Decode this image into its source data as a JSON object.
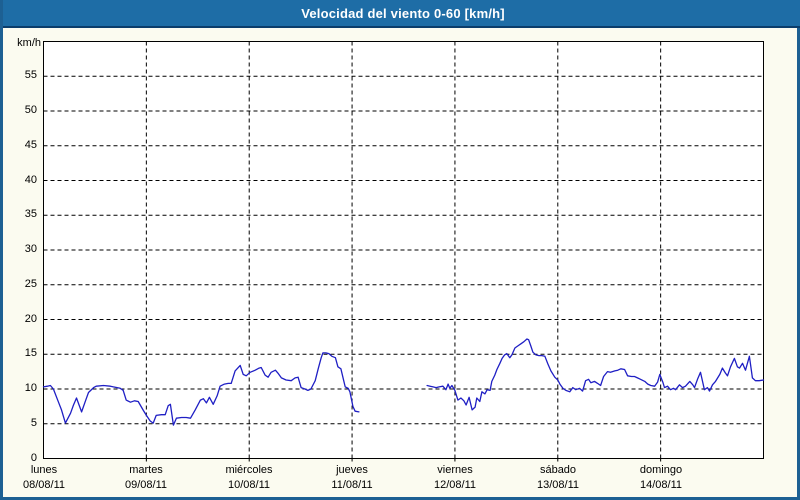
{
  "window": {
    "title": "Velocidad del viento 0-60 [km/h]"
  },
  "colors": {
    "titlebar_bg": "#1e6da6",
    "titlebar_separator": "#0b3d6b",
    "frame_border": "#1d6093",
    "frame_bg": "#fbfbf0",
    "plot_bg": "#ffffff",
    "axis": "#000000",
    "grid": "#000000",
    "line": "#1f1fc4",
    "title_text": "#ffffff",
    "label_text": "#000000"
  },
  "chart_data": {
    "type": "line",
    "title": "Velocidad del viento 0-60 [km/h]",
    "unit_label": "km/h",
    "ylim": [
      0,
      60
    ],
    "yticks": [
      0,
      5,
      10,
      15,
      20,
      25,
      30,
      35,
      40,
      45,
      50,
      55
    ],
    "grid": "dashed",
    "legend": "none",
    "x_axis": {
      "unit": "hours",
      "range_hours": [
        0,
        168
      ],
      "day_tick_every_hours": 24,
      "day_labels": [
        {
          "name": "lunes",
          "date": "08/08/11"
        },
        {
          "name": "martes",
          "date": "09/08/11"
        },
        {
          "name": "miércoles",
          "date": "10/08/11"
        },
        {
          "name": "jueves",
          "date": "11/08/11"
        },
        {
          "name": "viernes",
          "date": "12/08/11"
        },
        {
          "name": "sábado",
          "date": "13/08/11"
        },
        {
          "name": "domingo",
          "date": "14/08/11"
        }
      ]
    },
    "series": [
      {
        "name": "velocidad del viento",
        "color": "#1f1fc4",
        "segments": [
          {
            "points": [
              [
                0.0,
                10.3
              ],
              [
                0.9,
                10.4
              ],
              [
                1.6,
                10.5
              ],
              [
                2.3,
                10.0
              ],
              [
                3.5,
                8.1
              ],
              [
                4.2,
                7.0
              ],
              [
                5.1,
                5.1
              ],
              [
                6.3,
                6.5
              ],
              [
                7.0,
                7.7
              ],
              [
                7.7,
                8.7
              ],
              [
                8.9,
                6.7
              ],
              [
                9.8,
                8.3
              ],
              [
                10.5,
                9.5
              ],
              [
                11.7,
                10.2
              ],
              [
                12.3,
                10.4
              ],
              [
                14.0,
                10.5
              ],
              [
                15.6,
                10.4
              ],
              [
                16.3,
                10.3
              ],
              [
                17.9,
                10.1
              ],
              [
                18.6,
                9.8
              ],
              [
                19.3,
                8.4
              ],
              [
                20.3,
                8.1
              ],
              [
                21.2,
                8.3
              ],
              [
                22.1,
                8.2
              ],
              [
                23.3,
                6.9
              ],
              [
                24.0,
                6.2
              ],
              [
                24.9,
                5.4
              ],
              [
                25.6,
                5.1
              ],
              [
                26.3,
                6.2
              ],
              [
                27.5,
                6.3
              ],
              [
                28.4,
                6.3
              ],
              [
                29.1,
                7.6
              ],
              [
                29.6,
                7.8
              ],
              [
                30.3,
                4.8
              ],
              [
                31.0,
                5.8
              ],
              [
                32.2,
                5.9
              ],
              [
                33.3,
                5.9
              ],
              [
                34.3,
                5.8
              ],
              [
                35.4,
                7.0
              ],
              [
                36.6,
                8.4
              ],
              [
                37.3,
                8.6
              ],
              [
                38.0,
                8.0
              ],
              [
                38.7,
                8.8
              ],
              [
                39.6,
                7.8
              ],
              [
                40.5,
                9.0
              ],
              [
                41.2,
                10.4
              ],
              [
                42.2,
                10.7
              ],
              [
                43.1,
                10.8
              ],
              [
                43.8,
                10.8
              ],
              [
                44.7,
                12.6
              ],
              [
                45.9,
                13.4
              ],
              [
                46.6,
                12.1
              ],
              [
                47.3,
                11.9
              ],
              [
                48.2,
                12.4
              ],
              [
                49.4,
                12.7
              ],
              [
                50.3,
                13.0
              ],
              [
                50.8,
                13.1
              ],
              [
                51.7,
                12.0
              ],
              [
                52.4,
                11.7
              ],
              [
                53.1,
                12.4
              ],
              [
                54.1,
                12.7
              ],
              [
                54.8,
                12.2
              ],
              [
                55.5,
                11.6
              ],
              [
                56.6,
                11.3
              ],
              [
                57.8,
                11.2
              ],
              [
                58.7,
                11.6
              ],
              [
                59.4,
                11.7
              ],
              [
                60.1,
                10.2
              ],
              [
                61.0,
                10.0
              ],
              [
                61.7,
                9.8
              ],
              [
                62.4,
                10.0
              ],
              [
                63.4,
                11.2
              ],
              [
                64.1,
                12.9
              ],
              [
                64.8,
                14.5
              ],
              [
                65.2,
                15.2
              ],
              [
                65.9,
                15.2
              ],
              [
                66.6,
                15.1
              ],
              [
                67.3,
                14.7
              ],
              [
                68.1,
                14.5
              ],
              [
                68.7,
                13.2
              ],
              [
                69.4,
                12.9
              ],
              [
                70.4,
                10.3
              ],
              [
                71.1,
                10.1
              ],
              [
                71.5,
                9.6
              ],
              [
                72.2,
                7.5
              ],
              [
                72.7,
                6.8
              ],
              [
                73.6,
                6.7
              ]
            ]
          },
          {
            "points": [
              [
                89.5,
                10.5
              ],
              [
                90.2,
                10.4
              ],
              [
                90.9,
                10.3
              ],
              [
                91.6,
                10.2
              ],
              [
                92.3,
                10.3
              ],
              [
                93.2,
                10.4
              ],
              [
                93.9,
                9.9
              ],
              [
                94.4,
                10.7
              ],
              [
                94.8,
                10.1
              ],
              [
                95.3,
                10.5
              ],
              [
                96.0,
                9.8
              ],
              [
                96.7,
                8.4
              ],
              [
                97.4,
                8.7
              ],
              [
                98.1,
                8.3
              ],
              [
                98.6,
                7.7
              ],
              [
                99.3,
                8.8
              ],
              [
                100.0,
                7.0
              ],
              [
                100.7,
                7.4
              ],
              [
                101.1,
                8.7
              ],
              [
                101.8,
                8.2
              ],
              [
                102.3,
                9.6
              ],
              [
                103.0,
                9.3
              ],
              [
                103.5,
                9.9
              ],
              [
                104.2,
                9.8
              ],
              [
                104.6,
                11.1
              ],
              [
                105.3,
                12.0
              ],
              [
                105.8,
                12.8
              ],
              [
                106.5,
                13.7
              ],
              [
                107.0,
                14.4
              ],
              [
                107.6,
                14.9
              ],
              [
                108.1,
                15.1
              ],
              [
                108.8,
                14.5
              ],
              [
                109.3,
                14.9
              ],
              [
                110.0,
                15.9
              ],
              [
                110.7,
                16.2
              ],
              [
                111.4,
                16.5
              ],
              [
                112.1,
                16.8
              ],
              [
                112.8,
                17.2
              ],
              [
                113.2,
                17.1
              ],
              [
                113.7,
                16.2
              ],
              [
                114.2,
                15.3
              ],
              [
                114.9,
                14.9
              ],
              [
                115.6,
                14.8
              ],
              [
                116.3,
                14.8
              ],
              [
                117.0,
                14.7
              ],
              [
                117.7,
                13.6
              ],
              [
                118.4,
                12.6
              ],
              [
                119.3,
                11.7
              ],
              [
                120.0,
                11.3
              ],
              [
                120.5,
                10.7
              ],
              [
                121.2,
                10.1
              ],
              [
                121.9,
                9.8
              ],
              [
                122.8,
                9.6
              ],
              [
                123.5,
                10.2
              ],
              [
                124.2,
                9.9
              ],
              [
                125.1,
                10.1
              ],
              [
                125.8,
                9.7
              ],
              [
                126.5,
                11.2
              ],
              [
                127.2,
                11.4
              ],
              [
                127.7,
                10.9
              ],
              [
                128.6,
                11.1
              ],
              [
                129.3,
                10.8
              ],
              [
                130.0,
                10.5
              ],
              [
                130.7,
                11.8
              ],
              [
                131.6,
                12.5
              ],
              [
                132.3,
                12.4
              ],
              [
                133.3,
                12.6
              ],
              [
                134.0,
                12.7
              ],
              [
                134.7,
                12.9
              ],
              [
                135.6,
                12.8
              ],
              [
                136.3,
                11.9
              ],
              [
                137.2,
                11.8
              ],
              [
                137.9,
                11.8
              ],
              [
                138.6,
                11.6
              ],
              [
                139.3,
                11.4
              ],
              [
                140.3,
                11.1
              ],
              [
                141.0,
                10.7
              ],
              [
                141.7,
                10.5
              ],
              [
                142.6,
                10.4
              ],
              [
                143.3,
                11.0
              ],
              [
                143.8,
                12.1
              ],
              [
                144.5,
                11.0
              ],
              [
                144.9,
                10.2
              ],
              [
                145.6,
                10.4
              ],
              [
                146.3,
                9.9
              ],
              [
                147.0,
                10.1
              ],
              [
                147.5,
                9.9
              ],
              [
                148.4,
                10.6
              ],
              [
                149.1,
                10.2
              ],
              [
                149.8,
                10.4
              ],
              [
                150.8,
                11.1
              ],
              [
                151.5,
                10.6
              ],
              [
                151.9,
                10.2
              ],
              [
                152.6,
                11.4
              ],
              [
                153.3,
                12.4
              ],
              [
                154.2,
                9.9
              ],
              [
                154.9,
                10.2
              ],
              [
                155.4,
                9.7
              ],
              [
                156.1,
                10.6
              ],
              [
                156.8,
                11.1
              ],
              [
                157.8,
                12.1
              ],
              [
                158.4,
                13.0
              ],
              [
                159.1,
                12.3
              ],
              [
                159.6,
                11.9
              ],
              [
                160.3,
                13.2
              ],
              [
                161.2,
                14.4
              ],
              [
                161.9,
                13.2
              ],
              [
                162.4,
                13.0
              ],
              [
                163.1,
                13.7
              ],
              [
                163.8,
                12.7
              ],
              [
                164.7,
                14.7
              ],
              [
                165.4,
                11.6
              ],
              [
                166.1,
                11.2
              ],
              [
                167.0,
                11.2
              ],
              [
                168.0,
                11.3
              ]
            ]
          }
        ]
      }
    ]
  }
}
